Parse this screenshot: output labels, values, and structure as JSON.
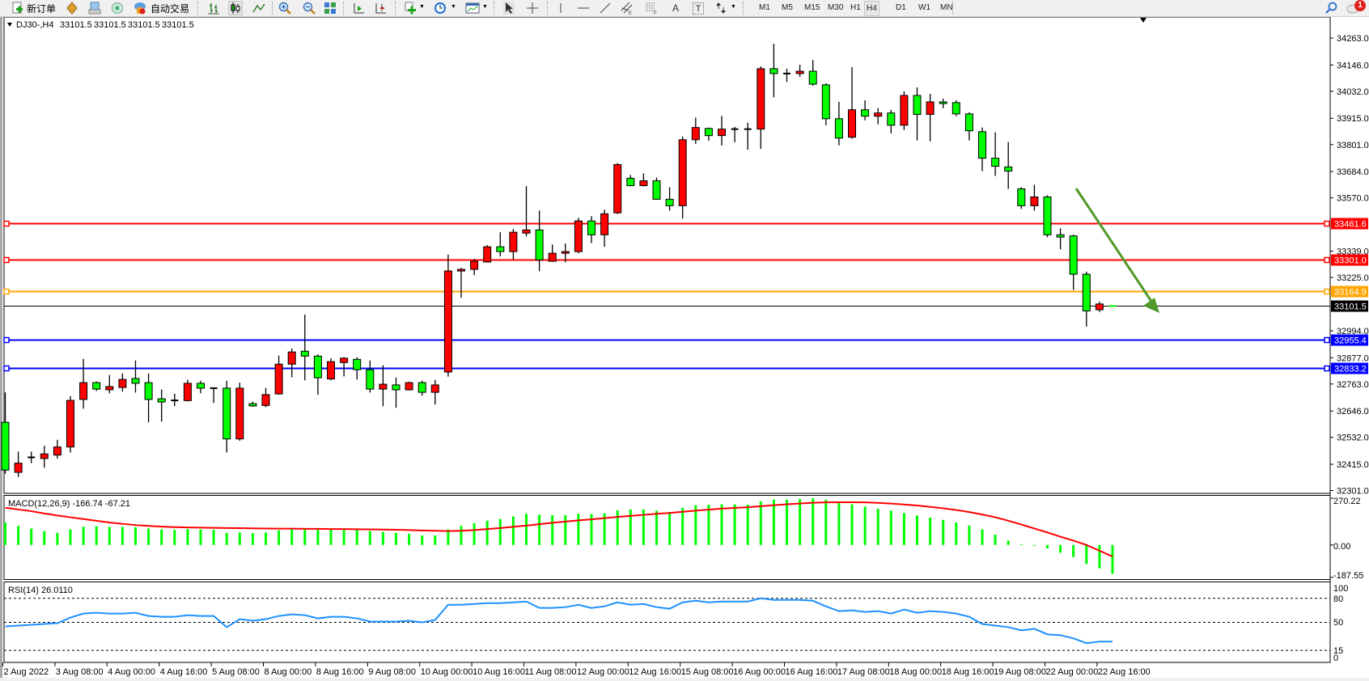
{
  "toolbar": {
    "new_order_label": "新订单",
    "auto_trading_label": "自动交易",
    "text_tool_label": "T",
    "text_label_tool": "A",
    "timeframes": [
      "M1",
      "M5",
      "M15",
      "M30",
      "H1",
      "H4",
      "D1",
      "W1",
      "MN"
    ],
    "active_timeframe": "H4",
    "notification_count": "1",
    "icons": [
      "new-order-icon",
      "meta-editor-icon",
      "navigator-icon",
      "signals-icon",
      "auto-trading-icon",
      "bar-chart-icon",
      "candlestick-icon",
      "line-chart-icon",
      "zoom-in-icon",
      "zoom-out-icon",
      "tile-windows-icon",
      "auto-scroll-icon",
      "chart-shift-icon",
      "indicators-icon",
      "periods-icon",
      "templates-icon",
      "cursor-icon",
      "crosshair-icon",
      "vertical-line-icon",
      "horizontal-line-icon",
      "trendline-icon",
      "equidistant-channel-icon",
      "fibonacci-icon",
      "text-icon",
      "arrows-icon",
      "search-icon",
      "notification-icon"
    ]
  },
  "chart": {
    "symbol": "DJ30-,H4",
    "ohlc_values": [
      "33101.5",
      "33101.5",
      "33101.5",
      "33101.5"
    ],
    "price_ticks": [
      "34263.0",
      "34146.0",
      "34032.0",
      "33915.0",
      "33801.0",
      "33684.0",
      "33570.0",
      "33339.0",
      "33225.0",
      "32994.0",
      "32877.0",
      "32763.0",
      "32646.0",
      "32532.0",
      "32415.0",
      "32301.0"
    ],
    "levels": [
      {
        "price": "33461.6",
        "color": "#ff0000"
      },
      {
        "price": "33301.0",
        "color": "#ff0000"
      },
      {
        "price": "33164.9",
        "color": "#ffa500"
      },
      {
        "price": "33101.5",
        "color": "#000000"
      },
      {
        "price": "32955.4",
        "color": "#0000ff"
      },
      {
        "price": "32833.2",
        "color": "#0000ff"
      }
    ],
    "arrow_color": "#4f9a2a",
    "time_labels": [
      "2 Aug 2022",
      "3 Aug 08:00",
      "4 Aug 00:00",
      "4 Aug 16:00",
      "5 Aug 08:00",
      "8 Aug 00:00",
      "8 Aug 16:00",
      "9 Aug 08:00",
      "10 Aug 00:00",
      "10 Aug 16:00",
      "11 Aug 08:00",
      "12 Aug 00:00",
      "12 Aug 16:00",
      "15 Aug 08:00",
      "16 Aug 00:00",
      "16 Aug 16:00",
      "17 Aug 08:00",
      "18 Aug 00:00",
      "18 Aug 16:00",
      "19 Aug 08:00",
      "22 Aug 00:00",
      "22 Aug 16:00"
    ]
  },
  "macd": {
    "label": "MACD(12,26,9) -166.74 -67.21",
    "axis_labels": [
      "270.22",
      "0.00",
      "-187.55"
    ]
  },
  "rsi": {
    "label": "RSI(14) 26.0110",
    "axis_labels": [
      "100",
      "80",
      "50",
      "15",
      "0"
    ]
  },
  "chart_data": [
    {
      "type": "candlestick",
      "symbol": "DJ30-",
      "timeframe": "H4",
      "ylim": [
        32301.0,
        34263.0
      ],
      "up_color": "#ff0000",
      "down_color": "#00ff00",
      "ohlc_order": [
        "open",
        "high",
        "low",
        "close"
      ],
      "candles": [
        [
          32597,
          32727,
          32374,
          32390
        ],
        [
          32380,
          32470,
          32360,
          32420
        ],
        [
          32440,
          32470,
          32420,
          32445
        ],
        [
          32440,
          32495,
          32400,
          32460
        ],
        [
          32455,
          32521,
          32440,
          32490
        ],
        [
          32490,
          32711,
          32466,
          32692
        ],
        [
          32696,
          32872,
          32656,
          32769
        ],
        [
          32769,
          32774,
          32733,
          32741
        ],
        [
          32738,
          32802,
          32723,
          32752
        ],
        [
          32748,
          32809,
          32730,
          32783
        ],
        [
          32787,
          32865,
          32726,
          32766
        ],
        [
          32769,
          32809,
          32597,
          32696
        ],
        [
          32699,
          32739,
          32600,
          32685
        ],
        [
          32690,
          32721,
          32667,
          32692
        ],
        [
          32691,
          32781,
          32688,
          32766
        ],
        [
          32766,
          32777,
          32723,
          32745
        ],
        [
          32745,
          32747,
          32681,
          32744
        ],
        [
          32745,
          32777,
          32466,
          32525
        ],
        [
          32525,
          32769,
          32517,
          32745
        ],
        [
          32678,
          32687,
          32664,
          32668
        ],
        [
          32670,
          32746,
          32663,
          32717
        ],
        [
          32720,
          32886,
          32717,
          32849
        ],
        [
          32849,
          32917,
          32792,
          32902
        ],
        [
          32905,
          33064,
          32779,
          32884
        ],
        [
          32884,
          32891,
          32716,
          32790
        ],
        [
          32785,
          32875,
          32779,
          32860
        ],
        [
          32856,
          32879,
          32796,
          32875
        ],
        [
          32870,
          32879,
          32782,
          32825
        ],
        [
          32825,
          32865,
          32726,
          32741
        ],
        [
          32741,
          32844,
          32667,
          32762
        ],
        [
          32759,
          32791,
          32660,
          32738
        ],
        [
          32738,
          32773,
          32735,
          32769
        ],
        [
          32769,
          32777,
          32712,
          32727
        ],
        [
          32727,
          32781,
          32674,
          32759
        ],
        [
          32815,
          33324,
          32795,
          33253
        ],
        [
          33253,
          33267,
          33137,
          33260
        ],
        [
          33260,
          33306,
          33235,
          33295
        ],
        [
          33292,
          33365,
          33290,
          33358
        ],
        [
          33358,
          33421,
          33316,
          33337
        ],
        [
          33337,
          33435,
          33303,
          33421
        ],
        [
          33417,
          33621,
          33403,
          33431
        ],
        [
          33431,
          33515,
          33252,
          33301
        ],
        [
          33295,
          33368,
          33293,
          33330
        ],
        [
          33330,
          33372,
          33291,
          33337
        ],
        [
          33337,
          33484,
          33330,
          33470
        ],
        [
          33470,
          33491,
          33374,
          33410
        ],
        [
          33410,
          33519,
          33358,
          33501
        ],
        [
          33505,
          33721,
          33500,
          33714
        ],
        [
          33655,
          33669,
          33620,
          33623
        ],
        [
          33623,
          33676,
          33620,
          33644
        ],
        [
          33644,
          33658,
          33562,
          33564
        ],
        [
          33564,
          33616,
          33515,
          33536
        ],
        [
          33536,
          33836,
          33480,
          33822
        ],
        [
          33822,
          33918,
          33804,
          33875
        ],
        [
          33871,
          33875,
          33818,
          33840
        ],
        [
          33840,
          33925,
          33797,
          33868
        ],
        [
          33868,
          33878,
          33811,
          33867
        ],
        [
          33867,
          33896,
          33779,
          33868
        ],
        [
          33868,
          34140,
          33783,
          34130
        ],
        [
          34130,
          34238,
          34006,
          34109
        ],
        [
          34108,
          34130,
          34073,
          34109
        ],
        [
          34109,
          34147,
          34095,
          34119
        ],
        [
          34119,
          34168,
          34056,
          34063
        ],
        [
          34060,
          34067,
          33885,
          33913
        ],
        [
          33913,
          33986,
          33798,
          33829
        ],
        [
          33833,
          34137,
          33826,
          33952
        ],
        [
          33952,
          33993,
          33906,
          33924
        ],
        [
          33924,
          33959,
          33889,
          33938
        ],
        [
          33938,
          33952,
          33850,
          33885
        ],
        [
          33885,
          34032,
          33864,
          34014
        ],
        [
          34014,
          34049,
          33819,
          33932
        ],
        [
          33932,
          34021,
          33815,
          33986
        ],
        [
          33986,
          34000,
          33959,
          33979
        ],
        [
          33983,
          33993,
          33924,
          33934
        ],
        [
          33934,
          33941,
          33819,
          33861
        ],
        [
          33857,
          33875,
          33686,
          33742
        ],
        [
          33742,
          33854,
          33665,
          33707
        ],
        [
          33704,
          33812,
          33609,
          33686
        ],
        [
          33609,
          33616,
          33522,
          33536
        ],
        [
          33536,
          33627,
          33515,
          33574
        ],
        [
          33574,
          33581,
          33399,
          33410
        ],
        [
          33410,
          33438,
          33347,
          33400
        ],
        [
          33405,
          33410,
          33171,
          33239
        ],
        [
          33239,
          33250,
          33012,
          33080
        ],
        [
          33085,
          33120,
          33075,
          33110
        ],
        [
          33101.5,
          33101.5,
          33101.5,
          33101.5
        ]
      ]
    },
    {
      "type": "bar",
      "name": "MACD(12,26,9)",
      "ylim": [
        -187.55,
        270.22
      ],
      "bar_color": "#00ff00",
      "line_color": "#ff0000",
      "histogram": [
        130,
        110,
        95,
        80,
        70,
        90,
        105,
        108,
        105,
        105,
        103,
        95,
        90,
        88,
        92,
        90,
        88,
        70,
        72,
        68,
        72,
        85,
        95,
        98,
        95,
        93,
        92,
        90,
        80,
        75,
        70,
        65,
        55,
        55,
        90,
        110,
        125,
        140,
        150,
        165,
        180,
        175,
        172,
        172,
        180,
        178,
        183,
        200,
        205,
        205,
        198,
        190,
        215,
        230,
        232,
        235,
        235,
        233,
        252,
        262,
        262,
        265,
        270,
        262,
        245,
        235,
        222,
        210,
        198,
        185,
        170,
        158,
        145,
        130,
        112,
        90,
        60,
        25,
        3,
        -5,
        -20,
        -45,
        -70,
        -110,
        -135,
        -166.74
      ],
      "signal": [
        215,
        205,
        195,
        182,
        170,
        160,
        150,
        140,
        130,
        122,
        115,
        110,
        106,
        103,
        101,
        100,
        99,
        98,
        97,
        96,
        95,
        94,
        94,
        93,
        93,
        92,
        92,
        91,
        90,
        89,
        88,
        86,
        84,
        82,
        80,
        82,
        86,
        92,
        98,
        105,
        112,
        120,
        128,
        135,
        142,
        148,
        155,
        162,
        168,
        174,
        180,
        185,
        192,
        198,
        204,
        210,
        214,
        218,
        224,
        230,
        235,
        240,
        244,
        246,
        247,
        247,
        246,
        243,
        239,
        234,
        228,
        220,
        212,
        202,
        190,
        176,
        160,
        140,
        118,
        95,
        72,
        48,
        25,
        0,
        -33,
        -67.21
      ]
    },
    {
      "type": "line",
      "name": "RSI(14)",
      "ylim": [
        0,
        100
      ],
      "levels": [
        80,
        50,
        15
      ],
      "line_color": "#1e90ff",
      "values": [
        45,
        46,
        47,
        48,
        49,
        56,
        61,
        62,
        61,
        61,
        62,
        58,
        57,
        57,
        59,
        58,
        58,
        44,
        54,
        52,
        54,
        58,
        60,
        59,
        55,
        57,
        57,
        55,
        51,
        51,
        51,
        52,
        50,
        53,
        72,
        72,
        73,
        74,
        74,
        75,
        76,
        68,
        68,
        69,
        72,
        68,
        70,
        75,
        72,
        73,
        69,
        67,
        75,
        77,
        75,
        76,
        76,
        76,
        80,
        78,
        78,
        78,
        77,
        70,
        64,
        65,
        63,
        64,
        61,
        66,
        62,
        64,
        63,
        61,
        57,
        48,
        46,
        44,
        40,
        42,
        35,
        34,
        30,
        24,
        26,
        26.011
      ]
    }
  ]
}
